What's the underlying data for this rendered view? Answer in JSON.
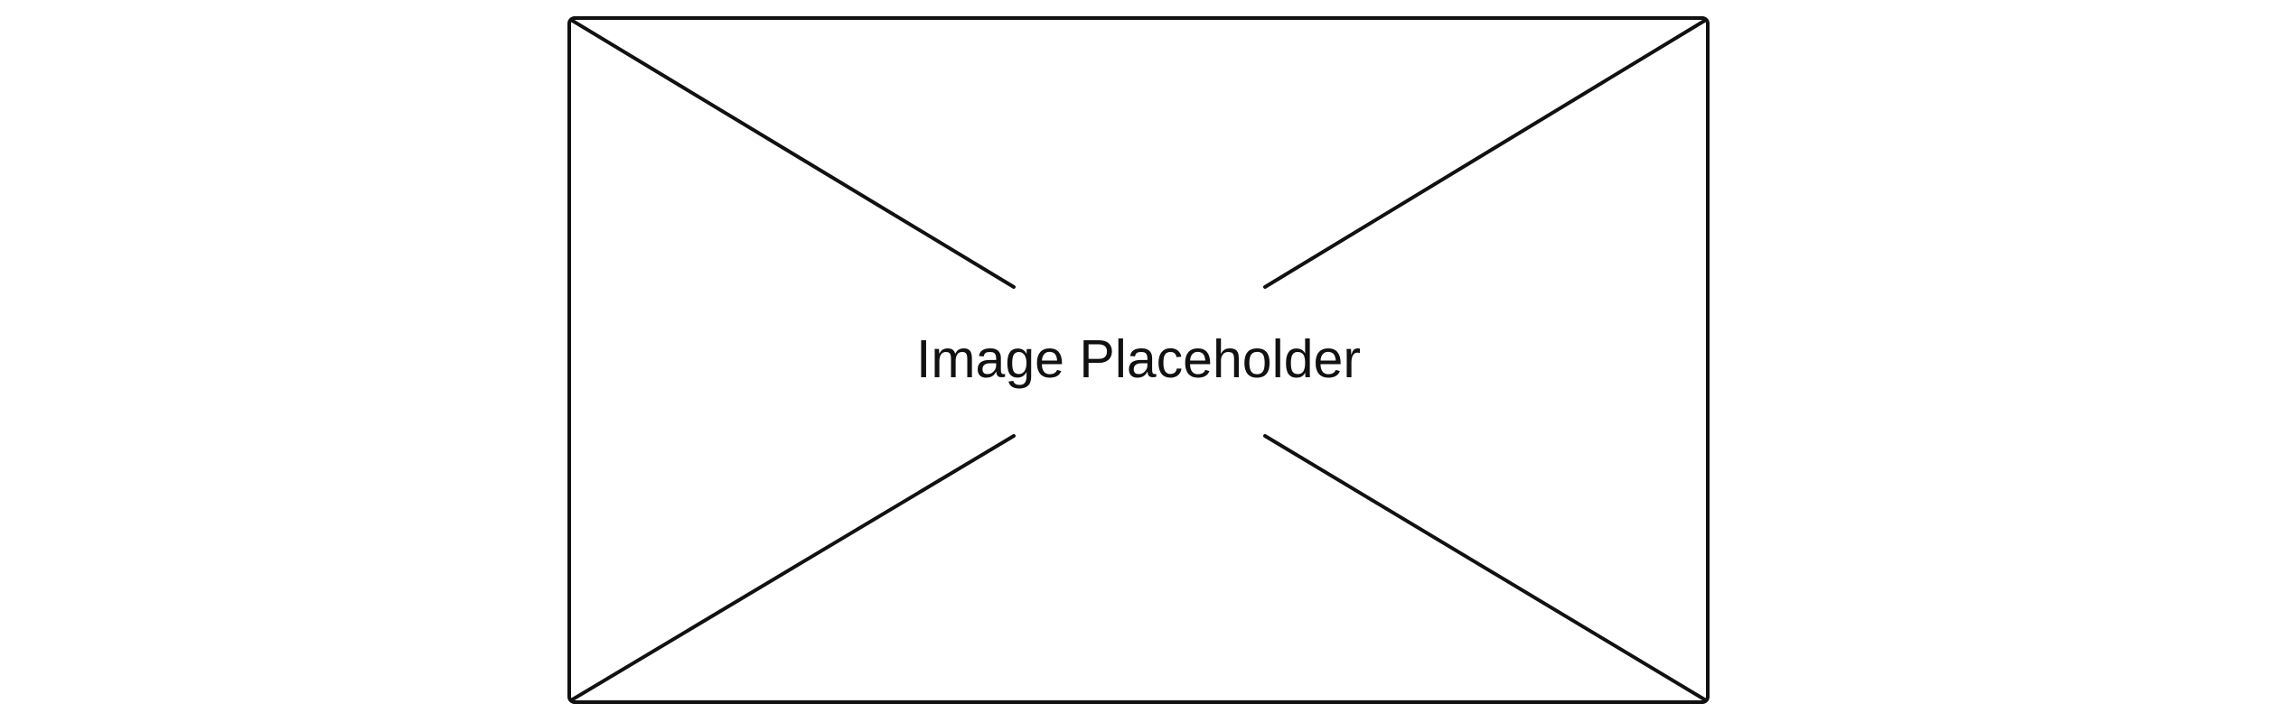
{
  "placeholder": {
    "label": "Image Placeholder",
    "icon": "image-placeholder-icon",
    "stroke_color": "#111111",
    "background_color": "#ffffff"
  }
}
